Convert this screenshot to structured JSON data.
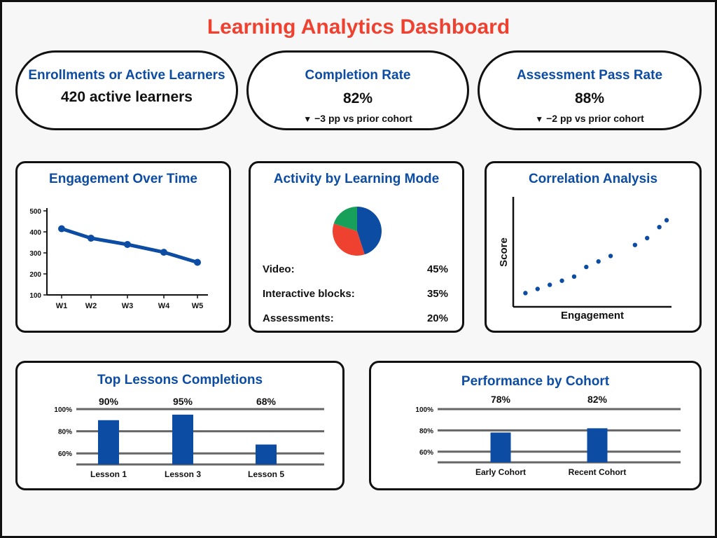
{
  "page": {
    "title": "Learning Analytics Dashboard"
  },
  "kpis": [
    {
      "label": "Enrollments or Active Learners",
      "value": "420 active learners",
      "delta": ""
    },
    {
      "label": "Completion Rate",
      "value": "82%",
      "delta": "−3 pp vs prior cohort",
      "delta_icon": "▼"
    },
    {
      "label": "Assessment Pass Rate",
      "value": "88%",
      "delta": "−2 pp vs prior cohort",
      "delta_icon": "▼"
    }
  ],
  "colors": {
    "title": "#ef4130",
    "heading": "#0c4ca3",
    "series": "#0c4ca3",
    "video": "#0c4ca3",
    "interactive": "#ef4130",
    "assessments": "#16a05a"
  },
  "chart_data": [
    {
      "type": "line",
      "title": "Engagement Over Time",
      "x": [
        "W1",
        "W2",
        "W3",
        "W4",
        "W5"
      ],
      "values": [
        415,
        370,
        340,
        303,
        255
      ],
      "yticks": [
        "500",
        "400",
        "300",
        "200",
        "100"
      ],
      "ylim": [
        100,
        500
      ]
    },
    {
      "type": "pie",
      "title": "Activity by Learning Mode",
      "slices": [
        {
          "label": "Video:",
          "value": 45,
          "display": "45%"
        },
        {
          "label": "Interactive blocks:",
          "value": 35,
          "display": "35%"
        },
        {
          "label": "Assessments:",
          "value": 20,
          "display": "20%"
        }
      ]
    },
    {
      "type": "scatter",
      "title": "Correlation Analysis",
      "xlabel": "Engagement",
      "ylabel": "Score",
      "x": [
        1,
        2,
        3,
        4,
        5,
        6,
        7,
        8,
        10,
        11,
        12,
        12.6
      ],
      "y": [
        1,
        1.3,
        1.6,
        1.9,
        2.2,
        2.9,
        3.3,
        3.7,
        4.5,
        5,
        5.8,
        6.3
      ],
      "xlim": [
        0,
        13
      ],
      "ylim": [
        0,
        8
      ]
    },
    {
      "type": "bar",
      "title": "Top Lessons Completions",
      "categories": [
        "Lesson 1",
        "Lesson 3",
        "Lesson 5"
      ],
      "values": [
        90,
        95,
        68
      ],
      "labels": [
        "90%",
        "95%",
        "68%"
      ],
      "yticks": [
        "100%",
        "80%",
        "60%"
      ],
      "ylim": [
        50,
        100
      ]
    },
    {
      "type": "bar",
      "title": "Performance by Cohort",
      "categories": [
        "Early Cohort",
        "Recent Cohort"
      ],
      "values": [
        78,
        82
      ],
      "labels": [
        "78%",
        "82%"
      ],
      "yticks": [
        "100%",
        "80%",
        "60%"
      ],
      "ylim": [
        50,
        100
      ]
    }
  ]
}
